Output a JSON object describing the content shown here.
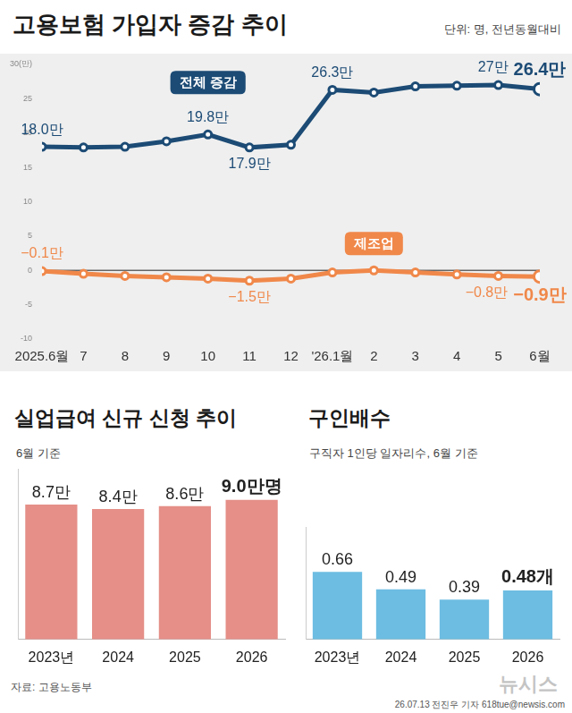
{
  "chart_data": [
    {
      "type": "line",
      "title": "고용보험 가입자 증감 추이",
      "subtitle": "단위: 명, 전년동월대비",
      "categories": [
        "2025.6월",
        "7",
        "8",
        "9",
        "10",
        "11",
        "12",
        "'26.1월",
        "2",
        "3",
        "4",
        "5",
        "6월"
      ],
      "series": [
        {
          "name": "전체 증감",
          "color": "#1c4b75",
          "values": [
            18.0,
            17.9,
            18.0,
            18.8,
            19.8,
            17.9,
            18.3,
            26.3,
            25.9,
            26.8,
            26.9,
            27,
            26.4
          ],
          "value_labels": [
            "18.0만",
            null,
            null,
            null,
            "19.8만",
            "17.9만",
            null,
            "26.3만",
            null,
            null,
            null,
            "27만",
            "26.4만"
          ]
        },
        {
          "name": "제조업",
          "color": "#f0884a",
          "values": [
            -0.1,
            -0.5,
            -0.8,
            -1.0,
            -1.2,
            -1.5,
            -1.2,
            -0.3,
            0.0,
            -0.3,
            -0.6,
            -0.8,
            -0.9
          ],
          "value_labels": [
            "−0.1만",
            null,
            null,
            null,
            null,
            "−1.5만",
            null,
            null,
            null,
            null,
            null,
            "−0.8만",
            "−0.9만"
          ]
        }
      ],
      "ylim": [
        -10,
        30
      ],
      "yticks": [
        -10,
        -5,
        0,
        5,
        10,
        15,
        20,
        25,
        {
          "value": 30,
          "label": "30(만)"
        }
      ],
      "grid": false,
      "data_labels": true,
      "marker": "circle"
    },
    {
      "type": "bar",
      "title": "실업급여 신규 신청 추이",
      "subtitle": "6월 기준",
      "categories": [
        "2023년",
        "2024",
        "2025",
        "2026"
      ],
      "values": [
        8.7,
        8.4,
        8.6,
        9.0
      ],
      "value_labels": [
        "8.7만",
        "8.4만",
        "8.6만",
        "9.0만명"
      ],
      "color": "#e58f88",
      "ylim": [
        0,
        11
      ],
      "data_labels": true,
      "tick_labels": "x"
    },
    {
      "type": "bar",
      "title": "구인배수",
      "subtitle": "구직자 1인당 일자리수, 6월 기준",
      "categories": [
        "2023년",
        "2024",
        "2025",
        "2026"
      ],
      "values": [
        0.66,
        0.49,
        0.39,
        0.48
      ],
      "value_labels": [
        "0.66",
        "0.49",
        "0.39",
        "0.48개"
      ],
      "color": "#6dbde2",
      "ylim": [
        0,
        1.1
      ],
      "data_labels": true,
      "tick_labels": "x"
    }
  ],
  "source": "자료: 고용노동부",
  "watermark": "뉴시스",
  "credit": "26.07.13 전진우 기자 618tue@newsis.com"
}
